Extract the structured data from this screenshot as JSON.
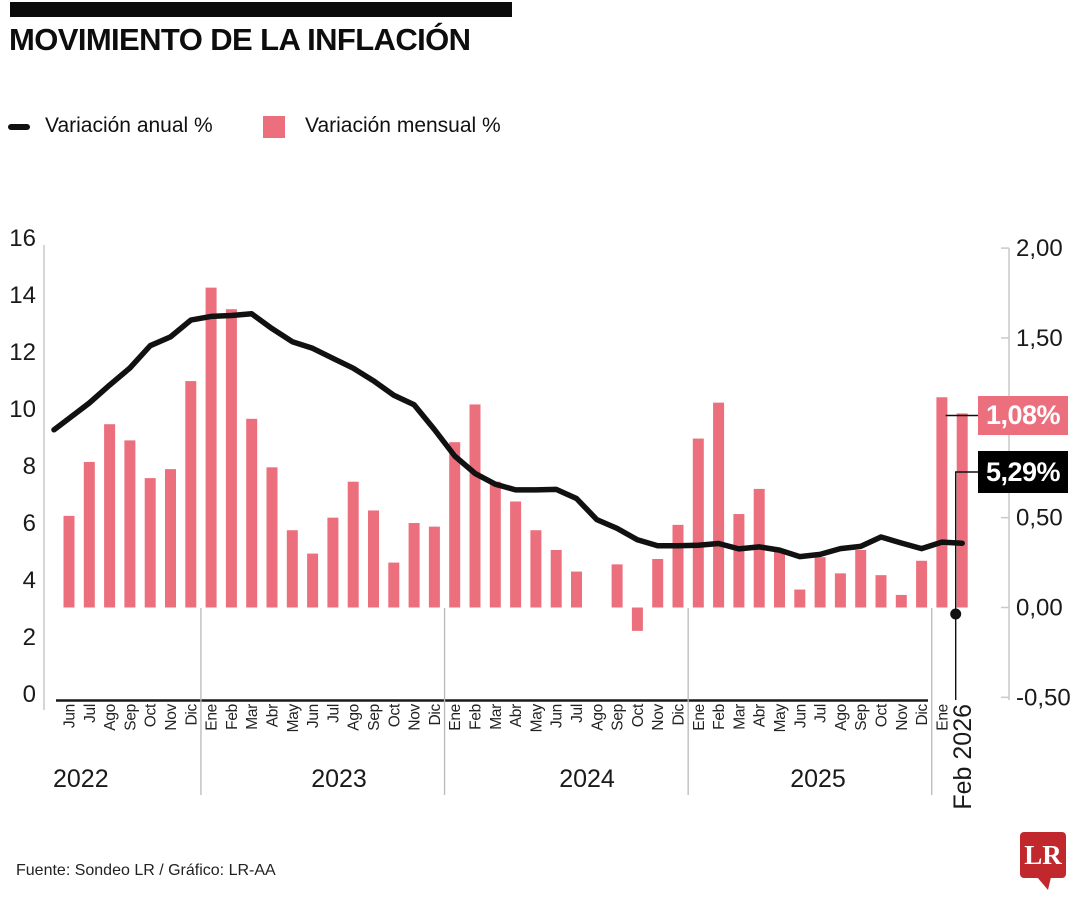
{
  "header": {
    "title": "MOVIMIENTO DE LA INFLACIÓN"
  },
  "legend": {
    "items": [
      {
        "label": "Variación anual %",
        "swatch": "line-dash",
        "color": "#111111"
      },
      {
        "label": "Variación mensual %",
        "swatch": "square",
        "color": "#EC6F7D"
      }
    ]
  },
  "callouts": {
    "monthly": {
      "text": "1,08%",
      "bg": "#EC6F7D"
    },
    "annual": {
      "text": "5,29%",
      "bg": "#000000"
    }
  },
  "footer": {
    "source": "Fuente: Sondeo LR / Gráfico: LR-AA",
    "logo_text": "LR",
    "logo_color": "#C0282D"
  },
  "chart_data": {
    "type": "bar",
    "subtype": "bar+line dual axis",
    "categories": [
      "Jun",
      "Jul",
      "Ago",
      "Sep",
      "Oct",
      "Nov",
      "Dic",
      "Ene",
      "Feb",
      "Mar",
      "Abr",
      "May",
      "Jun",
      "Jul",
      "Ago",
      "Sep",
      "Oct",
      "Nov",
      "Dic",
      "Ene",
      "Feb",
      "Mar",
      "Abr",
      "May",
      "Jun",
      "Jul",
      "Ago",
      "Sep",
      "Oct",
      "Nov",
      "Dic",
      "Ene",
      "Feb",
      "Mar",
      "Abr",
      "May",
      "Jun",
      "Jul",
      "Ago",
      "Sep",
      "Oct",
      "Nov",
      "Dic",
      "Ene",
      "Feb"
    ],
    "last_category_label": "Feb 2026",
    "year_groups": [
      {
        "label": "2022",
        "months": 7
      },
      {
        "label": "2023",
        "months": 12
      },
      {
        "label": "2024",
        "months": 12
      },
      {
        "label": "2025",
        "months": 12
      },
      {
        "label": "2026",
        "months": 2
      }
    ],
    "series": [
      {
        "name": "Variación anual %",
        "type": "line",
        "axis": "left",
        "color": "#111111",
        "values": [
          9.67,
          10.21,
          10.84,
          11.44,
          12.22,
          12.53,
          13.12,
          13.25,
          13.28,
          13.34,
          12.82,
          12.36,
          12.13,
          11.78,
          11.43,
          10.99,
          10.48,
          10.15,
          9.28,
          8.35,
          7.74,
          7.36,
          7.16,
          7.16,
          7.18,
          6.86,
          6.12,
          5.81,
          5.41,
          5.2,
          5.2,
          5.22,
          5.28,
          5.09,
          5.16,
          5.05,
          4.82,
          4.9,
          5.1,
          5.18,
          5.51,
          5.3,
          5.1,
          5.33,
          5.29
        ]
      },
      {
        "name": "Variación mensual %",
        "type": "bar",
        "axis": "right",
        "color": "#EC6F7D",
        "values": [
          0.51,
          0.81,
          1.02,
          0.93,
          0.72,
          0.77,
          1.26,
          1.78,
          1.66,
          1.05,
          0.78,
          0.43,
          0.3,
          0.5,
          0.7,
          0.54,
          0.25,
          0.47,
          0.45,
          0.92,
          1.13,
          0.7,
          0.59,
          0.43,
          0.32,
          0.2,
          0.0,
          0.24,
          -0.13,
          0.27,
          0.46,
          0.94,
          1.14,
          0.52,
          0.66,
          0.32,
          0.1,
          0.28,
          0.19,
          0.32,
          0.18,
          0.07,
          0.26,
          1.17,
          1.08
        ]
      }
    ],
    "left_axis": {
      "min": 0,
      "max": 16,
      "tick_labels": [
        "16",
        "14",
        "12",
        "10",
        "8",
        "6",
        "4",
        "2",
        "0"
      ],
      "tick_values": [
        16,
        14,
        12,
        10,
        8,
        6,
        4,
        2,
        0
      ]
    },
    "right_axis": {
      "min": -0.5,
      "max": 2.0,
      "tick_labels": [
        "2,00",
        "1,50",
        "0,50",
        "0,00",
        "-0,50"
      ],
      "tick_values": [
        2.0,
        1.5,
        0.5,
        0.0,
        -0.5
      ]
    },
    "grid": "off",
    "legend_position": "top-left",
    "annotations": {
      "last_bar_value": "1,08%",
      "last_line_value": "5,29%"
    }
  }
}
